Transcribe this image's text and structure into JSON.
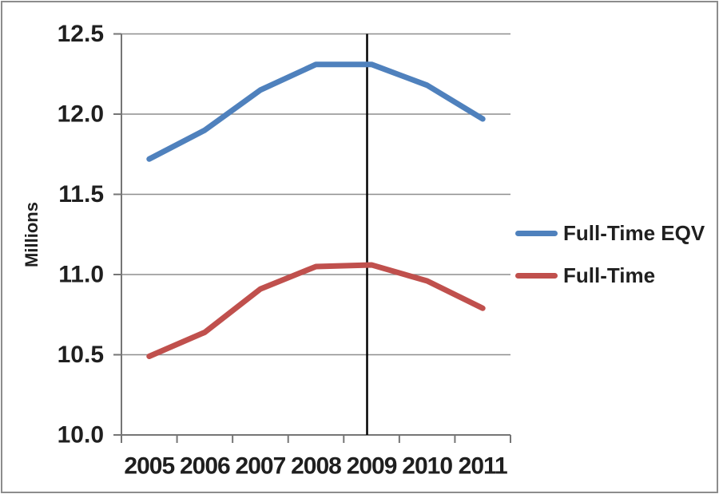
{
  "chart_data": {
    "type": "line",
    "title": "",
    "xlabel": "",
    "ylabel": "Millions",
    "categories": [
      "2005",
      "2006",
      "2007",
      "2008",
      "2009",
      "2010",
      "2011"
    ],
    "series": [
      {
        "name": "Full-Time EQV",
        "color": "#4f81bd",
        "values": [
          11.72,
          11.9,
          12.15,
          12.31,
          12.31,
          12.18,
          11.97
        ]
      },
      {
        "name": "Full-Time",
        "color": "#c0504d",
        "values": [
          10.49,
          10.64,
          10.91,
          11.05,
          11.06,
          10.96,
          10.79
        ]
      }
    ],
    "ylim": [
      10.0,
      12.5
    ],
    "ytick_step": 0.5,
    "ytick_labels": [
      "10.0",
      "10.5",
      "11.0",
      "11.5",
      "12.0",
      "12.5"
    ],
    "grid": true,
    "legend_position": "center-right",
    "annotations": [
      {
        "type": "vline",
        "between": [
          "2008",
          "2009"
        ],
        "x_center_units": 4.42,
        "color": "#000000"
      }
    ],
    "colors": {
      "grid": "#8e8e8e",
      "axis": "#757575",
      "text": "#1f1f1f",
      "background": "#ffffff",
      "border": "#8c8c8c"
    }
  }
}
